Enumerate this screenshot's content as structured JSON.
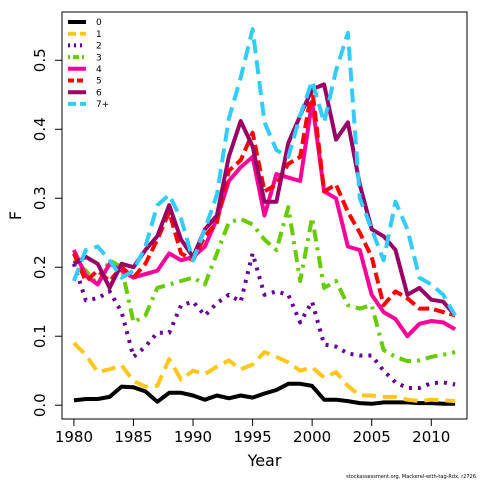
{
  "chart_data": {
    "type": "line",
    "xlabel": "Year",
    "ylabel": "F",
    "xlim": [
      1979,
      2013
    ],
    "ylim": [
      -0.02,
      0.57
    ],
    "xticks": [
      "1980",
      "1985",
      "1990",
      "1995",
      "2000",
      "2005",
      "2010"
    ],
    "yticks": [
      "0.0",
      "0.1",
      "0.2",
      "0.3",
      "0.4",
      "0.5"
    ],
    "grid": false,
    "legend_position": "top-left",
    "credit": "stockassessment.org, Mackerel-with-tag-Rdx, r2726",
    "x": [
      1980,
      1981,
      1982,
      1983,
      1984,
      1985,
      1986,
      1987,
      1988,
      1989,
      1990,
      1991,
      1992,
      1993,
      1994,
      1995,
      1996,
      1997,
      1998,
      1999,
      2000,
      2001,
      2002,
      2003,
      2004,
      2005,
      2006,
      2007,
      2008,
      2009,
      2010,
      2011,
      2012
    ],
    "series": [
      {
        "name": "0",
        "color": "#000000",
        "dash": "solid",
        "values": [
          0.007,
          0.009,
          0.009,
          0.012,
          0.027,
          0.026,
          0.02,
          0.005,
          0.018,
          0.018,
          0.014,
          0.008,
          0.014,
          0.01,
          0.014,
          0.011,
          0.017,
          0.022,
          0.031,
          0.031,
          0.028,
          0.008,
          0.008,
          0.006,
          0.003,
          0.002,
          0.004,
          0.004,
          0.004,
          0.003,
          0.003,
          0.002,
          0.002
        ]
      },
      {
        "name": "1",
        "color": "#FFC61E",
        "dash": "long",
        "values": [
          0.09,
          0.073,
          0.048,
          0.052,
          0.058,
          0.035,
          0.027,
          0.028,
          0.067,
          0.037,
          0.05,
          0.045,
          0.056,
          0.065,
          0.052,
          0.059,
          0.077,
          0.07,
          0.062,
          0.05,
          0.055,
          0.04,
          0.048,
          0.028,
          0.014,
          0.014,
          0.012,
          0.012,
          0.008,
          0.006,
          0.008,
          0.007,
          0.006
        ]
      },
      {
        "name": "2",
        "color": "#660099",
        "dash": "dot",
        "values": [
          0.205,
          0.152,
          0.155,
          0.165,
          0.135,
          0.07,
          0.085,
          0.105,
          0.105,
          0.145,
          0.15,
          0.13,
          0.148,
          0.16,
          0.15,
          0.22,
          0.16,
          0.165,
          0.16,
          0.12,
          0.15,
          0.088,
          0.085,
          0.075,
          0.072,
          0.072,
          0.05,
          0.033,
          0.025,
          0.025,
          0.032,
          0.033,
          0.03
        ]
      },
      {
        "name": "3",
        "color": "#66CC00",
        "dash": "dashdot",
        "values": [
          0.21,
          0.195,
          0.175,
          0.21,
          0.2,
          0.12,
          0.13,
          0.17,
          0.175,
          0.18,
          0.185,
          0.175,
          0.22,
          0.265,
          0.27,
          0.262,
          0.24,
          0.225,
          0.287,
          0.18,
          0.272,
          0.17,
          0.18,
          0.145,
          0.14,
          0.145,
          0.08,
          0.07,
          0.064,
          0.065,
          0.07,
          0.073,
          0.077
        ]
      },
      {
        "name": "4",
        "color": "#FF0099",
        "dash": "solid",
        "values": [
          0.225,
          0.188,
          0.175,
          0.205,
          0.195,
          0.185,
          0.19,
          0.195,
          0.22,
          0.21,
          0.215,
          0.23,
          0.27,
          0.325,
          0.345,
          0.36,
          0.275,
          0.335,
          0.33,
          0.325,
          0.44,
          0.31,
          0.3,
          0.23,
          0.225,
          0.16,
          0.135,
          0.125,
          0.1,
          0.118,
          0.122,
          0.12,
          0.11
        ]
      },
      {
        "name": "5",
        "color": "#FF0000",
        "dash": "dash",
        "values": [
          0.22,
          0.18,
          0.195,
          0.18,
          0.2,
          0.185,
          0.205,
          0.24,
          0.28,
          0.22,
          0.21,
          0.245,
          0.265,
          0.34,
          0.355,
          0.395,
          0.31,
          0.32,
          0.35,
          0.36,
          0.46,
          0.31,
          0.32,
          0.28,
          0.25,
          0.215,
          0.145,
          0.165,
          0.155,
          0.14,
          0.14,
          0.135,
          0.13
        ]
      },
      {
        "name": "6",
        "color": "#990066",
        "dash": "solid",
        "values": [
          0.205,
          0.215,
          0.205,
          0.17,
          0.205,
          0.2,
          0.225,
          0.245,
          0.29,
          0.24,
          0.215,
          0.255,
          0.275,
          0.36,
          0.412,
          0.375,
          0.295,
          0.295,
          0.38,
          0.42,
          0.458,
          0.465,
          0.385,
          0.41,
          0.32,
          0.255,
          0.245,
          0.225,
          0.16,
          0.17,
          0.153,
          0.15,
          0.13
        ]
      },
      {
        "name": "7+",
        "color": "#33CCFF",
        "dash": "long",
        "values": [
          0.18,
          0.225,
          0.23,
          0.21,
          0.185,
          0.195,
          0.23,
          0.29,
          0.305,
          0.27,
          0.21,
          0.255,
          0.305,
          0.415,
          0.475,
          0.545,
          0.41,
          0.37,
          0.36,
          0.42,
          0.47,
          0.41,
          0.485,
          0.54,
          0.3,
          0.255,
          0.21,
          0.295,
          0.255,
          0.185,
          0.175,
          0.16,
          0.13
        ]
      }
    ]
  }
}
